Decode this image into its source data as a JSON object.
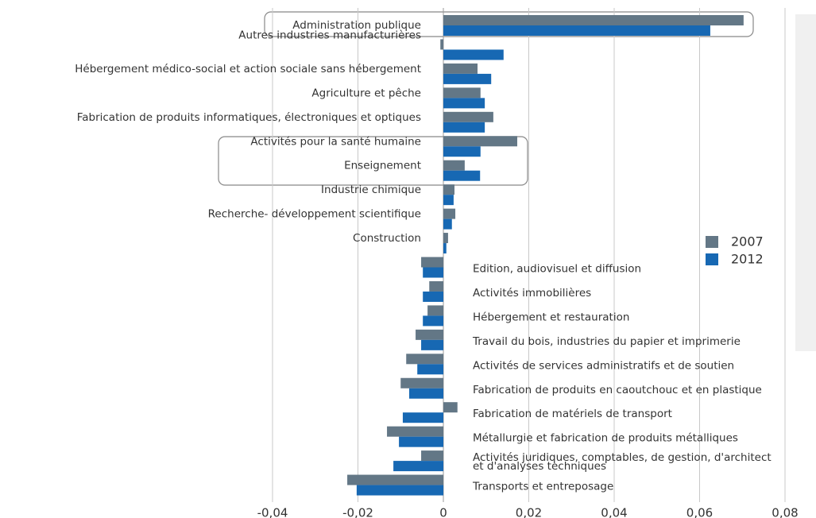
{
  "chart_data": {
    "type": "bar",
    "orientation": "horizontal",
    "categories": [
      "Administration publique",
      "Autres industries manufacturières",
      "Hébergement médico-social et action sociale sans hébergement",
      "Agriculture et pêche",
      "Fabrication de produits informatiques, électroniques et optiques",
      "Activités pour la santé humaine",
      "Enseignement",
      "Industrie chimique",
      "Recherche- développement scientifique",
      "Construction",
      "Edition, audiovisuel et diffusion",
      "Activités immobilières",
      "Hébergement et restauration",
      "Travail du bois, industries du papier et imprimerie",
      "Activités de services administratifs et de soutien",
      "Fabrication de produits en caoutchouc et en plastique",
      "Fabrication de matériels de transport",
      "Métallurgie et fabrication de produits métalliques",
      "Activités juridiques, comptables, de gestion, d'architect\net d'analyses techniques",
      "Transports et entreposage"
    ],
    "series": [
      {
        "name": "2007",
        "color": "#637786",
        "values": [
          0.0703,
          -0.0007,
          0.008,
          0.0087,
          0.0117,
          0.0173,
          0.005,
          0.0026,
          0.0028,
          0.0011,
          -0.0052,
          -0.0033,
          -0.0037,
          -0.0065,
          -0.0087,
          -0.01,
          0.0033,
          -0.0132,
          -0.0052,
          -0.0225
        ]
      },
      {
        "name": "2012",
        "color": "#1768b3",
        "values": [
          0.0625,
          0.0141,
          0.0112,
          0.0097,
          0.0097,
          0.0087,
          0.0086,
          0.0024,
          0.002,
          0.0007,
          -0.0048,
          -0.0048,
          -0.0048,
          -0.0052,
          -0.0061,
          -0.008,
          -0.0095,
          -0.0104,
          -0.0117,
          -0.0203
        ]
      }
    ],
    "xlim": [
      -0.04,
      0.08
    ],
    "xticks": [
      {
        "value": -0.04,
        "label": "-0,04"
      },
      {
        "value": -0.02,
        "label": "-0,02"
      },
      0,
      {
        "value": 0.02,
        "label": "0,02"
      },
      {
        "value": 0.04,
        "label": "0,04"
      },
      {
        "value": 0.06,
        "label": "0,06"
      },
      {
        "value": 0.08,
        "label": "0,08"
      }
    ],
    "grid": true,
    "legend": "right"
  }
}
